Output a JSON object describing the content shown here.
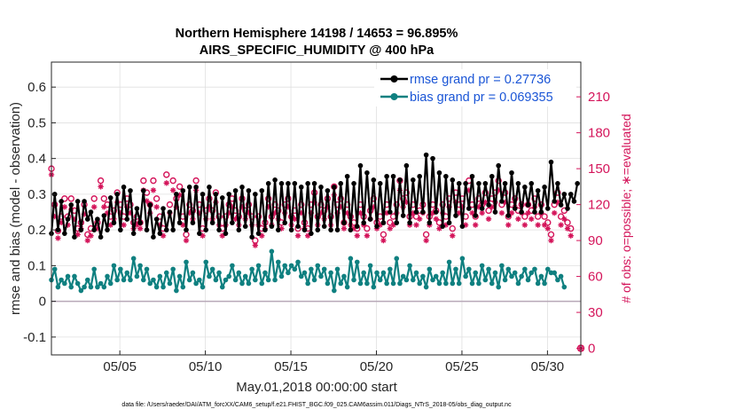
{
  "chart_data": {
    "type": "line",
    "title": "Northern Hemisphere 14198 / 14653 = 96.895%",
    "subtitle": "AIRS_SPECIFIC_HUMIDITY @ 400 hPa",
    "xlabel": "May.01,2018 00:00:00 start",
    "ylabel": "rmse and bias (model - observation)",
    "y2label": "# of obs: o=possible; ∗=evaluated",
    "footnote": "data file: /Users/raeder/DAI/ATM_forcXX/CAM6_setup/f.e21.FHIST_BGC.f09_025.CAM6assim.011/Diags_NTrS_2018-05/obs_diag_output.nc",
    "x_range": [
      1.0,
      31.95
    ],
    "ylim": [
      -0.15,
      0.67
    ],
    "y2lim": [
      -5.5,
      239
    ],
    "x_ticks": [
      5,
      10,
      15,
      20,
      25,
      30
    ],
    "x_tick_labels": [
      "05/05",
      "05/10",
      "05/15",
      "05/20",
      "05/25",
      "05/30"
    ],
    "y_ticks": [
      -0.1,
      0,
      0.1,
      0.2,
      0.3,
      0.4,
      0.5,
      0.6
    ],
    "y_tick_labels": [
      "-0.1",
      "0",
      "0.1",
      "0.2",
      "0.3",
      "0.4",
      "0.5",
      "0.6"
    ],
    "y2_ticks": [
      0,
      30,
      60,
      90,
      120,
      150,
      180,
      210
    ],
    "y2_tick_labels": [
      "0",
      "30",
      "60",
      "90",
      "120",
      "150",
      "180",
      "210"
    ],
    "legend": [
      {
        "label": "rmse grand pr = 0.27736",
        "color": "#000000"
      },
      {
        "label": "bias grand pr = 0.069355",
        "color": "#0f8080"
      }
    ],
    "colors": {
      "rmse": "#000000",
      "bias": "#0f8080",
      "obs": "#d4145a",
      "zero": "#b0a0b0",
      "grid": "#e0e0e0"
    },
    "rmse": [
      0.19,
      0.3,
      0.2,
      0.28,
      0.19,
      0.23,
      0.27,
      0.18,
      0.28,
      0.2,
      0.28,
      0.23,
      0.25,
      0.2,
      0.23,
      0.18,
      0.24,
      0.2,
      0.29,
      0.22,
      0.3,
      0.2,
      0.32,
      0.23,
      0.31,
      0.19,
      0.26,
      0.22,
      0.31,
      0.2,
      0.27,
      0.18,
      0.23,
      0.19,
      0.26,
      0.2,
      0.25,
      0.2,
      0.3,
      0.22,
      0.31,
      0.2,
      0.32,
      0.22,
      0.32,
      0.19,
      0.3,
      0.2,
      0.32,
      0.22,
      0.3,
      0.2,
      0.29,
      0.19,
      0.3,
      0.22,
      0.31,
      0.2,
      0.32,
      0.21,
      0.31,
      0.18,
      0.3,
      0.19,
      0.31,
      0.2,
      0.33,
      0.21,
      0.34,
      0.2,
      0.33,
      0.22,
      0.33,
      0.2,
      0.33,
      0.21,
      0.32,
      0.2,
      0.33,
      0.19,
      0.33,
      0.2,
      0.32,
      0.21,
      0.31,
      0.2,
      0.32,
      0.2,
      0.33,
      0.22,
      0.35,
      0.2,
      0.33,
      0.21,
      0.38,
      0.22,
      0.36,
      0.23,
      0.34,
      0.21,
      0.33,
      0.22,
      0.35,
      0.25,
      0.35,
      0.22,
      0.34,
      0.24,
      0.38,
      0.22,
      0.34,
      0.25,
      0.35,
      0.25,
      0.41,
      0.22,
      0.4,
      0.25,
      0.36,
      0.21,
      0.35,
      0.22,
      0.34,
      0.24,
      0.33,
      0.21,
      0.33,
      0.26,
      0.35,
      0.24,
      0.33,
      0.26,
      0.33,
      0.27,
      0.35,
      0.25,
      0.38,
      0.28,
      0.33,
      0.24,
      0.36,
      0.26,
      0.33,
      0.25,
      0.32,
      0.27,
      0.33,
      0.25,
      0.31,
      0.25,
      0.32,
      0.26,
      0.39,
      0.28,
      0.33,
      0.27,
      0.3,
      0.26,
      0.3,
      0.28,
      0.33
    ],
    "bias": [
      0.06,
      0.09,
      0.04,
      0.06,
      0.05,
      0.07,
      0.04,
      0.07,
      0.05,
      0.03,
      0.04,
      0.06,
      0.04,
      0.09,
      0.04,
      0.05,
      0.04,
      0.07,
      0.05,
      0.1,
      0.06,
      0.09,
      0.06,
      0.08,
      0.06,
      0.12,
      0.07,
      0.1,
      0.06,
      0.09,
      0.05,
      0.06,
      0.04,
      0.07,
      0.04,
      0.08,
      0.05,
      0.09,
      0.03,
      0.07,
      0.04,
      0.11,
      0.06,
      0.08,
      0.05,
      0.06,
      0.04,
      0.11,
      0.07,
      0.09,
      0.06,
      0.08,
      0.04,
      0.06,
      0.07,
      0.1,
      0.06,
      0.08,
      0.05,
      0.07,
      0.05,
      0.09,
      0.06,
      0.1,
      0.05,
      0.08,
      0.06,
      0.14,
      0.06,
      0.11,
      0.07,
      0.1,
      0.08,
      0.1,
      0.09,
      0.11,
      0.07,
      0.08,
      0.05,
      0.09,
      0.06,
      0.1,
      0.07,
      0.09,
      0.05,
      0.08,
      0.03,
      0.09,
      0.05,
      0.07,
      0.04,
      0.12,
      0.06,
      0.11,
      0.05,
      0.08,
      0.05,
      0.1,
      0.04,
      0.08,
      0.06,
      0.08,
      0.05,
      0.09,
      0.05,
      0.12,
      0.05,
      0.07,
      0.06,
      0.1,
      0.06,
      0.08,
      0.05,
      0.07,
      0.04,
      0.09,
      0.06,
      0.07,
      0.05,
      0.08,
      0.05,
      0.11,
      0.05,
      0.09,
      0.05,
      0.12,
      0.07,
      0.09,
      0.05,
      0.08,
      0.05,
      0.1,
      0.06,
      0.09,
      0.05,
      0.08,
      0.04,
      0.1,
      0.06,
      0.09,
      0.07,
      0.08,
      0.05,
      0.07,
      0.09,
      0.06,
      0.08,
      0.09,
      0.05,
      0.07,
      0.05,
      0.09,
      0.08,
      0.08,
      0.06,
      0.07,
      0.04
    ],
    "obs_possible": [
      150,
      120,
      98,
      110,
      125,
      110,
      125,
      115,
      100,
      105,
      120,
      95,
      100,
      125,
      105,
      140,
      125,
      120,
      110,
      115,
      130,
      120,
      110,
      125,
      120,
      105,
      110,
      105,
      140,
      130,
      120,
      140,
      125,
      110,
      100,
      145,
      120,
      140,
      125,
      135,
      110,
      95,
      120,
      115,
      140,
      120,
      100,
      115,
      125,
      115,
      130,
      110,
      100,
      110,
      120,
      125,
      115,
      110,
      125,
      115,
      120,
      110,
      90,
      110,
      100,
      105,
      125,
      110,
      120,
      115,
      105,
      120,
      125,
      110,
      115,
      100,
      120,
      105,
      100,
      120,
      130,
      110,
      120,
      115,
      125,
      110,
      135,
      120,
      125,
      105,
      120,
      110,
      105,
      100,
      120,
      110,
      100,
      115,
      125,
      105,
      110,
      95,
      120,
      105,
      110,
      120,
      140,
      125,
      130,
      110,
      120,
      110,
      115,
      120,
      95,
      110,
      120,
      115,
      105,
      120,
      110,
      125,
      100,
      130,
      120,
      125,
      110,
      140,
      120,
      110,
      125,
      120,
      130,
      115,
      125,
      130,
      140,
      120,
      130,
      110,
      120,
      125,
      115,
      120,
      110,
      120,
      115,
      125,
      110,
      120,
      110,
      105,
      95,
      120,
      130,
      110,
      115,
      105,
      100
    ],
    "obs_evaluated": [
      145,
      110,
      92,
      105,
      118,
      103,
      116,
      108,
      95,
      100,
      112,
      90,
      94,
      118,
      100,
      135,
      118,
      113,
      103,
      108,
      122,
      113,
      103,
      118,
      113,
      100,
      103,
      100,
      132,
      123,
      113,
      132,
      118,
      103,
      94,
      138,
      113,
      132,
      118,
      128,
      103,
      90,
      113,
      108,
      132,
      113,
      94,
      108,
      118,
      108,
      122,
      103,
      94,
      103,
      113,
      118,
      108,
      103,
      118,
      108,
      113,
      103,
      86,
      103,
      94,
      100,
      118,
      103,
      113,
      108,
      100,
      113,
      118,
      103,
      108,
      94,
      113,
      100,
      94,
      113,
      122,
      103,
      113,
      108,
      118,
      103,
      128,
      113,
      118,
      100,
      113,
      103,
      100,
      94,
      113,
      103,
      94,
      108,
      118,
      100,
      103,
      90,
      113,
      100,
      103,
      113,
      132,
      118,
      122,
      103,
      113,
      103,
      108,
      113,
      90,
      103,
      113,
      108,
      100,
      113,
      103,
      118,
      94,
      122,
      113,
      118,
      103,
      132,
      113,
      103,
      118,
      113,
      122,
      108,
      118,
      122,
      132,
      113,
      122,
      103,
      113,
      118,
      108,
      113,
      103,
      113,
      108,
      118,
      103,
      113,
      103,
      100,
      90,
      113,
      122,
      103,
      108,
      100,
      94
    ],
    "outlier_point": {
      "x": 31.95,
      "obs": 0
    }
  }
}
